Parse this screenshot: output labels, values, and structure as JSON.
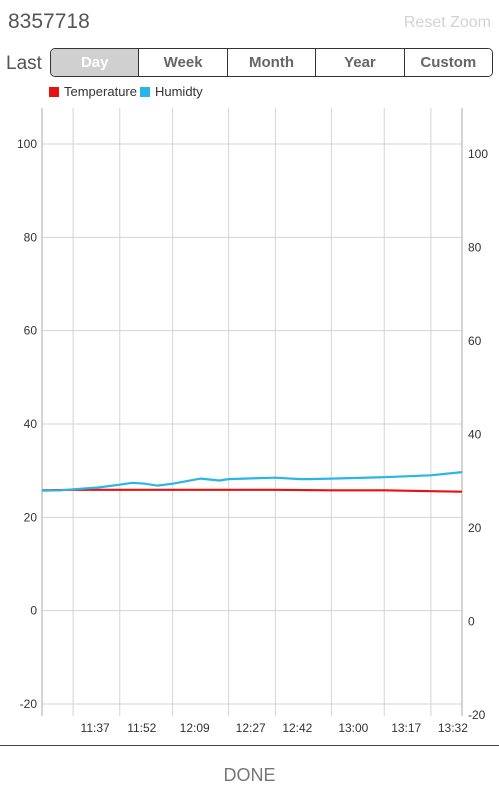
{
  "header": {
    "title": "8357718",
    "reset_zoom": "Reset Zoom"
  },
  "range": {
    "label": "Last",
    "options": [
      "Day",
      "Week",
      "Month",
      "Year",
      "Custom"
    ],
    "selected": "Day"
  },
  "legend": [
    {
      "name": "Temperature",
      "color": "#e81010"
    },
    {
      "name": "Humidty",
      "color": "#29b6e6"
    }
  ],
  "chart_data": {
    "type": "line",
    "x_ticks": [
      "11:37",
      "11:52",
      "12:09",
      "12:27",
      "12:42",
      "13:00",
      "13:17",
      "13:32"
    ],
    "y_left_ticks": [
      100,
      80,
      60,
      40,
      20,
      0,
      -20
    ],
    "y_right_ticks": [
      100,
      80,
      60,
      40,
      20,
      0,
      -20
    ],
    "ylim": [
      -20,
      100
    ],
    "grid": true,
    "legend_position": "top-left",
    "series": [
      {
        "name": "Temperature",
        "color": "#e81010",
        "x": [
          "11:27",
          "11:37",
          "11:52",
          "12:09",
          "12:27",
          "12:42",
          "13:00",
          "13:17",
          "13:32",
          "13:42"
        ],
        "values": [
          25.8,
          25.9,
          25.9,
          25.9,
          25.9,
          25.9,
          25.8,
          25.8,
          25.6,
          25.5
        ]
      },
      {
        "name": "Humidty",
        "color": "#29b6e6",
        "x": [
          "11:27",
          "11:33",
          "11:37",
          "11:45",
          "11:52",
          "11:56",
          "12:00",
          "12:04",
          "12:09",
          "12:18",
          "12:24",
          "12:27",
          "12:32",
          "12:37",
          "12:42",
          "12:50",
          "12:53",
          "13:00",
          "13:17",
          "13:32",
          "13:42"
        ],
        "values": [
          25.7,
          25.8,
          26.0,
          26.4,
          27.0,
          27.4,
          27.2,
          26.8,
          27.2,
          28.3,
          27.9,
          28.2,
          28.3,
          28.4,
          28.5,
          28.2,
          28.2,
          28.3,
          28.6,
          29.0,
          29.7
        ]
      }
    ]
  },
  "footer": {
    "done_label": "DONE"
  }
}
